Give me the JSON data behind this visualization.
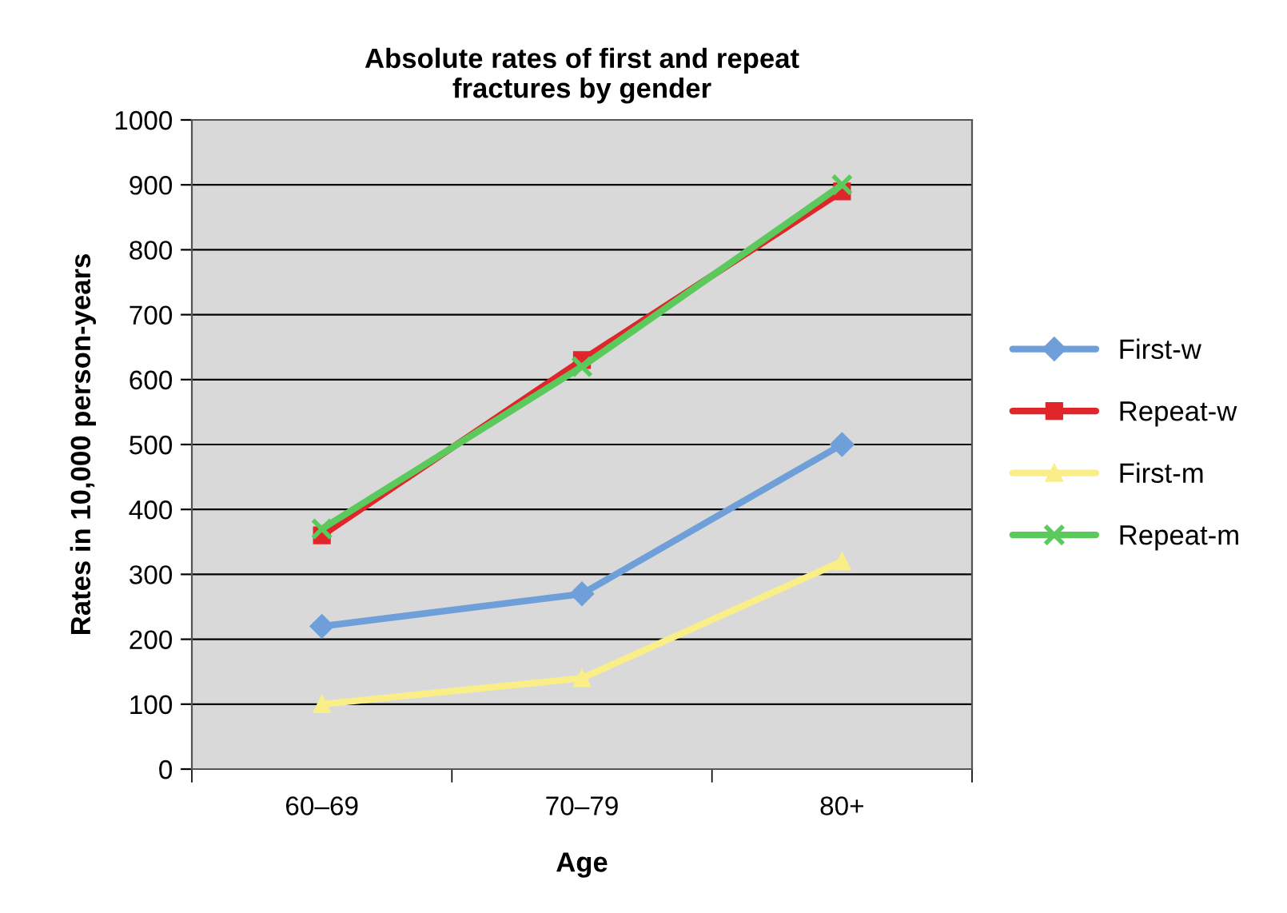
{
  "chart_data": {
    "type": "line",
    "title": "Absolute rates of first and repeat\nfractures by gender",
    "xlabel": "Age",
    "ylabel": "Rates in 10,000 person-years",
    "categories": [
      "60–69",
      "70–79",
      "80+"
    ],
    "series": [
      {
        "name": "First-w",
        "color": "#6f9fd8",
        "marker": "diamond",
        "values": [
          220,
          270,
          500
        ]
      },
      {
        "name": "Repeat-w",
        "color": "#e0262a",
        "marker": "square",
        "values": [
          360,
          630,
          890
        ]
      },
      {
        "name": "First-m",
        "color": "#f9ee87",
        "marker": "triangle",
        "values": [
          100,
          140,
          320
        ]
      },
      {
        "name": "Repeat-m",
        "color": "#5cc95c",
        "marker": "cross",
        "values": [
          370,
          620,
          900
        ]
      }
    ],
    "ylim": [
      0,
      1000
    ],
    "yticks": [
      0,
      100,
      200,
      300,
      400,
      500,
      600,
      700,
      800,
      900,
      1000
    ],
    "grid": "y",
    "legend": "right",
    "line_style": "solid"
  }
}
